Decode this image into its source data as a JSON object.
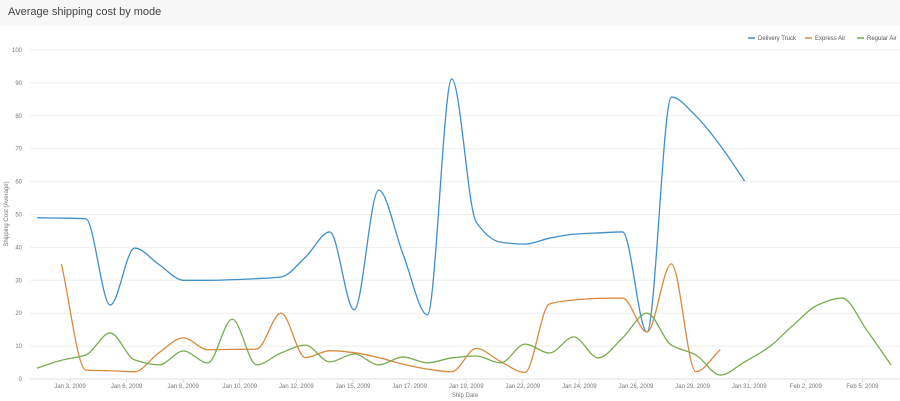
{
  "chart_data": {
    "type": "line",
    "title": "Average shipping cost by mode",
    "xlabel": "Ship Date",
    "ylabel": "Shipping Cost (Average)",
    "ylim": [
      0,
      100
    ],
    "yticks": [
      "0",
      "10",
      "20",
      "30",
      "40",
      "50",
      "60",
      "70",
      "80",
      "90",
      "100"
    ],
    "xticks": [
      "Jan 3, 2009",
      "Jan 6, 2009",
      "Jan 8, 2009",
      "Jan 10, 2009",
      "Jan 12, 2009",
      "Jan 15, 2009",
      "Jan 17, 2009",
      "Jan 19, 2009",
      "Jan 22, 2009",
      "Jan 24, 2009",
      "Jan 26, 2009",
      "Jan 29, 2009",
      "Jan 31, 2009",
      "Feb 2, 2009",
      "Feb 5, 2009"
    ],
    "grid": true,
    "legend_position": "top-right",
    "series": [
      {
        "name": "Delivery Truck",
        "color": "#3f8fcc",
        "start": "2009-01-02",
        "values": [
          49,
          48.9,
          48.7,
          22.5,
          39.8,
          34.8,
          30,
          30,
          30.2,
          30.5,
          31,
          37,
          44.7,
          21,
          57.4,
          38,
          19.5,
          91.2,
          47.7,
          41.6,
          41,
          42.8,
          44,
          44.4,
          44.7,
          14.3,
          85.7,
          80,
          71,
          60.2
        ]
      },
      {
        "name": "Express Air",
        "color": "#d98a3d",
        "start": "2009-01-03",
        "values": [
          35,
          2.7,
          2.5,
          2.2,
          8,
          12.5,
          8.9,
          9,
          9.1,
          20,
          6.5,
          8.6,
          8,
          6.5,
          4.5,
          3,
          2.2,
          9.3,
          5.3,
          2,
          22.8,
          24,
          24.5,
          24.6,
          14.3,
          35,
          2.2,
          8.9
        ]
      },
      {
        "name": "Regular Air",
        "color": "#7aab4e",
        "start": "2009-01-02",
        "values": [
          3.3,
          5.7,
          7.3,
          14,
          5.8,
          4.3,
          8.5,
          4.9,
          18.2,
          4.3,
          7.9,
          10.3,
          5.2,
          7.6,
          4.3,
          6.7,
          4.9,
          6.4,
          7,
          4.9,
          10.6,
          7.9,
          12.8,
          6.4,
          12.5,
          20,
          10.3,
          7.3,
          1.2,
          5.2,
          9.7,
          16.4,
          22.5,
          24.6,
          14.9,
          4.3
        ]
      }
    ]
  }
}
